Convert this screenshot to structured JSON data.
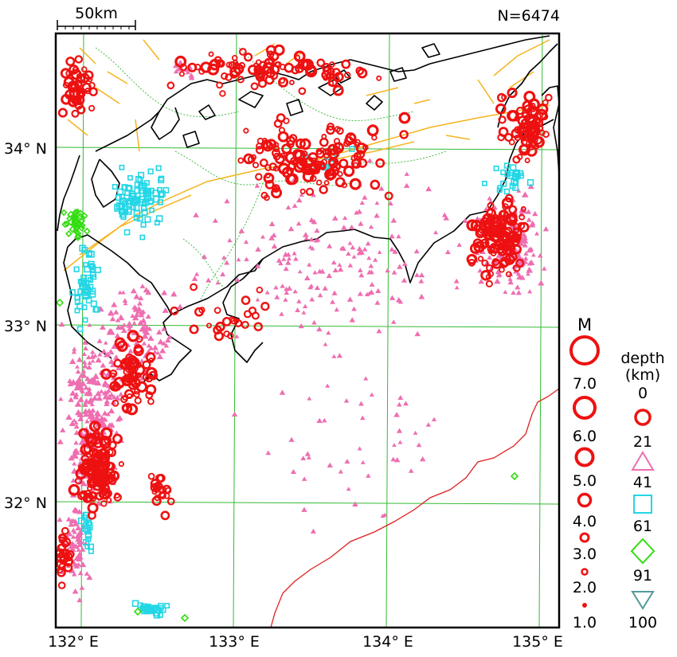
{
  "header": {
    "scale_label": "50km",
    "count_label": "N=6474"
  },
  "axes": {
    "lat_labels": [
      "34° N",
      "33° N",
      "32° N"
    ],
    "lon_labels": [
      "132° E",
      "133° E",
      "134° E",
      "135° E"
    ]
  },
  "legend": {
    "magnitude_title": "M",
    "magnitudes": [
      "7.0",
      "6.0",
      "5.0",
      "4.0",
      "3.0",
      "2.0",
      "1.0"
    ],
    "depth_title": "depth",
    "depth_unit": "(km)",
    "depth_values": [
      "0",
      "21",
      "41",
      "61",
      "91",
      "100"
    ],
    "depth_symbols": [
      "circle",
      "triangle",
      "square",
      "diamond",
      "inverted-triangle"
    ]
  },
  "colors": {
    "shallow": "#ee1111",
    "mid": "#ee6eb0",
    "deep1": "#22d6e6",
    "deep2": "#33dd11",
    "deep3": "#559999",
    "grid": "#33bb33",
    "fault": "#f5b41e",
    "boundary": "#44bb44",
    "coast": "#000000",
    "trench": "#dd2222"
  }
}
